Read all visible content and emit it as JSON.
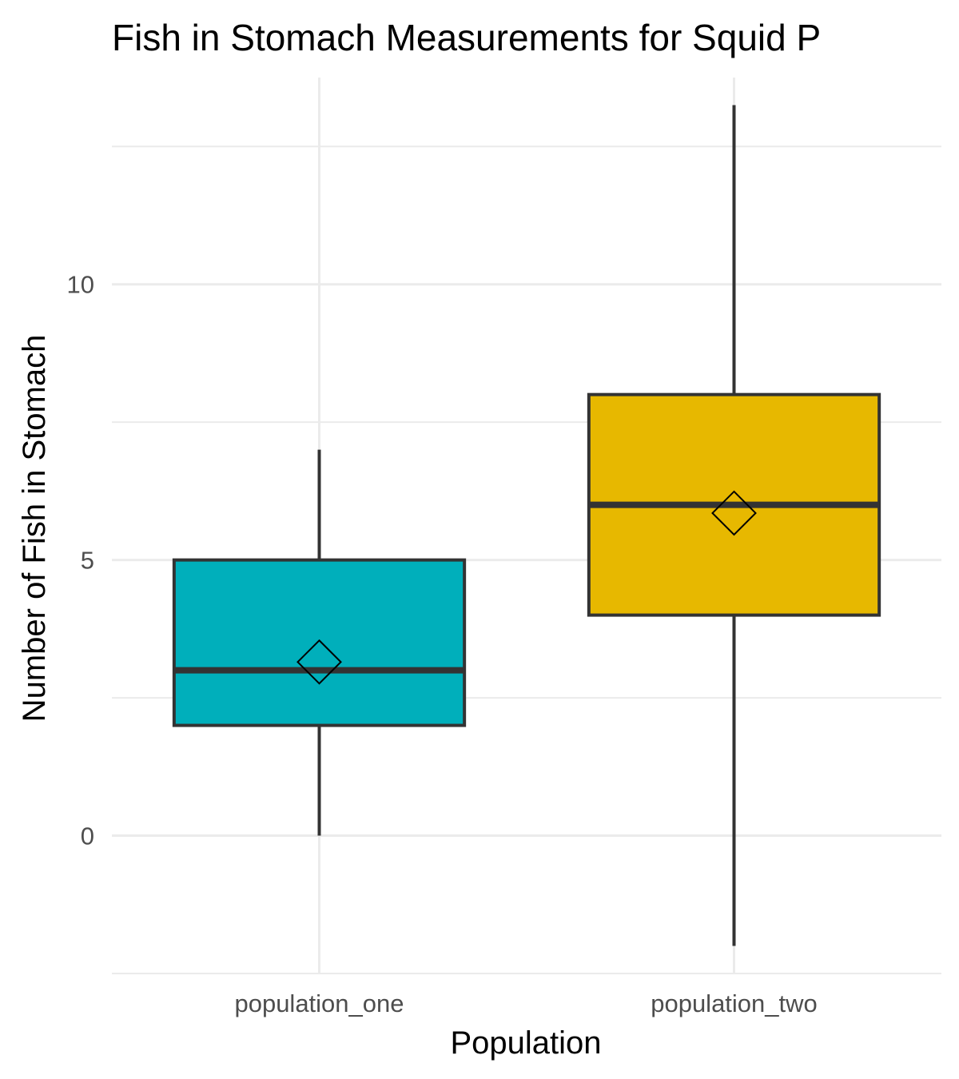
{
  "chart_data": {
    "type": "box",
    "title": "Fish in Stomach Measurements for Squid P",
    "xlabel": "Population",
    "ylabel": "Number of Fish in Stomach",
    "categories": [
      "population_one",
      "population_two"
    ],
    "ylim": [
      -2.5,
      13.75
    ],
    "yticks": [
      0,
      5,
      10
    ],
    "grid": true,
    "legend": "none",
    "boxes": [
      {
        "name": "population_one",
        "whisker_low": 0,
        "q1": 2,
        "median": 3,
        "q3": 5,
        "whisker_high": 7,
        "mean": 3.15,
        "color": "#00AFBB"
      },
      {
        "name": "population_two",
        "whisker_low": -2,
        "q1": 4,
        "median": 6,
        "q3": 8,
        "whisker_high": 13.25,
        "mean": 5.85,
        "color": "#E7B800"
      }
    ]
  }
}
